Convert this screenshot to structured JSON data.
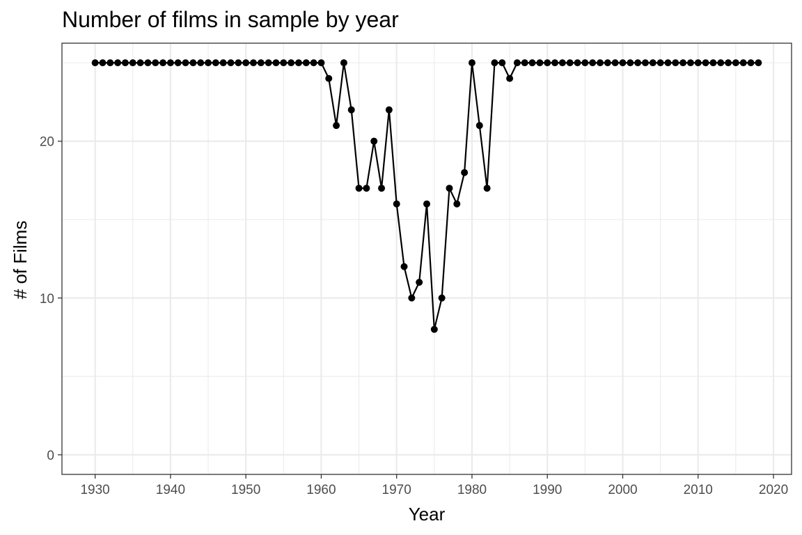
{
  "chart_data": {
    "type": "line",
    "title": "Number of films in sample by year",
    "xlabel": "Year",
    "ylabel": "# of Films",
    "xlim": [
      1925.6,
      2022.4
    ],
    "ylim": [
      -1.25,
      26.25
    ],
    "x_ticks": [
      1930,
      1940,
      1950,
      1960,
      1970,
      1980,
      1990,
      2000,
      2010,
      2020
    ],
    "y_ticks": [
      0,
      10,
      20
    ],
    "x_tick_labels": [
      "1930",
      "1940",
      "1950",
      "1960",
      "1970",
      "1980",
      "1990",
      "2000",
      "2010",
      "2020"
    ],
    "y_tick_labels": [
      "0",
      "10",
      "20"
    ],
    "grid": true,
    "markers": true,
    "series_color": "#000000",
    "x": [
      1930,
      1931,
      1932,
      1933,
      1934,
      1935,
      1936,
      1937,
      1938,
      1939,
      1940,
      1941,
      1942,
      1943,
      1944,
      1945,
      1946,
      1947,
      1948,
      1949,
      1950,
      1951,
      1952,
      1953,
      1954,
      1955,
      1956,
      1957,
      1958,
      1959,
      1960,
      1961,
      1962,
      1963,
      1964,
      1965,
      1966,
      1967,
      1968,
      1969,
      1970,
      1971,
      1972,
      1973,
      1974,
      1975,
      1976,
      1977,
      1978,
      1979,
      1980,
      1981,
      1982,
      1983,
      1984,
      1985,
      1986,
      1987,
      1988,
      1989,
      1990,
      1991,
      1992,
      1993,
      1994,
      1995,
      1996,
      1997,
      1998,
      1999,
      2000,
      2001,
      2002,
      2003,
      2004,
      2005,
      2006,
      2007,
      2008,
      2009,
      2010,
      2011,
      2012,
      2013,
      2014,
      2015,
      2016,
      2017,
      2018
    ],
    "values": [
      25,
      25,
      25,
      25,
      25,
      25,
      25,
      25,
      25,
      25,
      25,
      25,
      25,
      25,
      25,
      25,
      25,
      25,
      25,
      25,
      25,
      25,
      25,
      25,
      25,
      25,
      25,
      25,
      25,
      25,
      25,
      24,
      21,
      25,
      22,
      17,
      17,
      20,
      17,
      22,
      16,
      12,
      10,
      11,
      16,
      8,
      10,
      17,
      16,
      18,
      25,
      21,
      17,
      25,
      25,
      24,
      25,
      25,
      25,
      25,
      25,
      25,
      25,
      25,
      25,
      25,
      25,
      25,
      25,
      25,
      25,
      25,
      25,
      25,
      25,
      25,
      25,
      25,
      25,
      25,
      25,
      25,
      25,
      25,
      25,
      25,
      25,
      25,
      25
    ]
  }
}
